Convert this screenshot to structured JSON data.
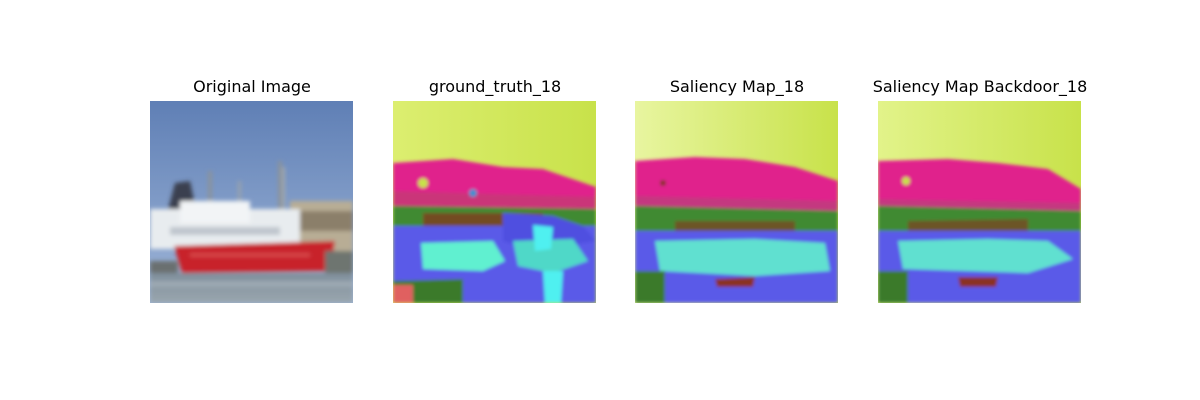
{
  "panels": [
    {
      "title": "Original Image",
      "image": "photo of a red ship moored in a harbor under a blue sky"
    },
    {
      "title": "ground_truth_18",
      "image": "color-coded saliency map"
    },
    {
      "title": "Saliency Map_18",
      "image": "color-coded saliency map"
    },
    {
      "title": "Saliency Map Backdoor_18",
      "image": "color-coded saliency map"
    }
  ],
  "colors": {
    "sky_blue": "#6f8fc0",
    "ship_red": "#c8202a",
    "lime": "#d6ea5a",
    "magenta": "#e0208c",
    "green": "#3f8a30",
    "blue": "#5050e0",
    "cyan": "#60f0d0"
  }
}
